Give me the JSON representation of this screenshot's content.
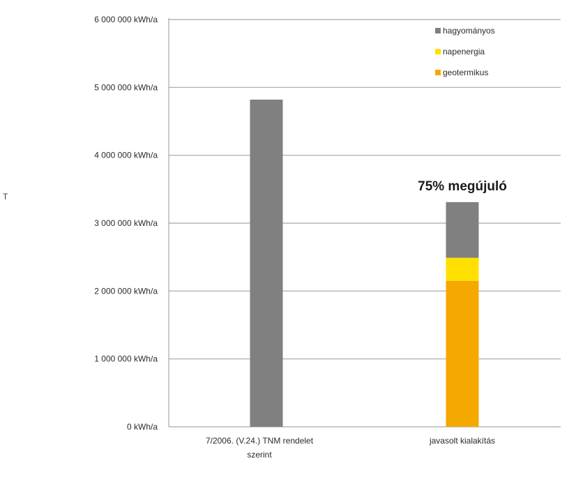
{
  "chart_data": {
    "type": "bar",
    "stacked": true,
    "categories": [
      "7/2006. (V.24.) TNM rendelet szerint",
      "javasolt kialakítás"
    ],
    "series": [
      {
        "name": "geotermikus",
        "color": "#f5a800",
        "values": [
          0,
          2150000
        ]
      },
      {
        "name": "napenergia",
        "color": "#ffe000",
        "values": [
          0,
          340000
        ]
      },
      {
        "name": "hagyományos",
        "color": "#808080",
        "values": [
          4820000,
          820000
        ]
      }
    ],
    "legend_order": [
      "hagyományos",
      "napenergia",
      "geotermikus"
    ],
    "ylim": [
      0,
      6000000
    ],
    "y_ticks": [
      {
        "value": 0,
        "label": "0 kWh/a"
      },
      {
        "value": 1000000,
        "label": "1 000 000 kWh/a"
      },
      {
        "value": 2000000,
        "label": "2 000 000 kWh/a"
      },
      {
        "value": 3000000,
        "label": "3 000 000 kWh/a"
      },
      {
        "value": 4000000,
        "label": "4 000 000 kWh/a"
      },
      {
        "value": 5000000,
        "label": "5 000 000 kWh/a"
      },
      {
        "value": 6000000,
        "label": "6 000 000 kWh/a"
      }
    ],
    "annotation": {
      "text": "75% megújuló",
      "category_index": 1
    },
    "grid": true,
    "legend_position": "top-right",
    "side_label": "T"
  }
}
